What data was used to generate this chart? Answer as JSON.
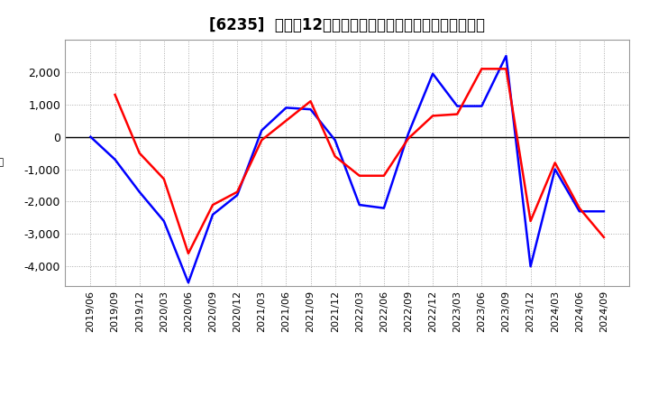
{
  "title": "[6235]  利益の12か月移動合計の対前年同期増減額の推移",
  "x_labels": [
    "2019/06",
    "2019/09",
    "2019/12",
    "2020/03",
    "2020/06",
    "2020/09",
    "2020/12",
    "2021/03",
    "2021/06",
    "2021/09",
    "2021/12",
    "2022/03",
    "2022/06",
    "2022/09",
    "2022/12",
    "2023/03",
    "2023/06",
    "2023/09",
    "2023/12",
    "2024/03",
    "2024/06",
    "2024/09"
  ],
  "operating_profit": [
    0,
    -700,
    -1700,
    -2600,
    -4500,
    -2400,
    -1800,
    200,
    900,
    850,
    -100,
    -2100,
    -2200,
    100,
    1950,
    950,
    950,
    2500,
    -4000,
    -1000,
    -2300,
    -2300
  ],
  "net_profit": [
    null,
    1300,
    -500,
    -1300,
    -3600,
    -2100,
    -1700,
    -100,
    500,
    1100,
    -600,
    -1200,
    -1200,
    -50,
    650,
    700,
    2100,
    2100,
    -2600,
    -800,
    -2200,
    -3100
  ],
  "ylim": [
    -4600,
    3000
  ],
  "yticks": [
    -4000,
    -3000,
    -2000,
    -1000,
    0,
    1000,
    2000
  ],
  "operating_color": "#0000ff",
  "net_color": "#ff0000",
  "background_color": "#ffffff",
  "grid_color": "#aaaaaa",
  "title_fontsize": 12,
  "axis_fontsize": 8
}
